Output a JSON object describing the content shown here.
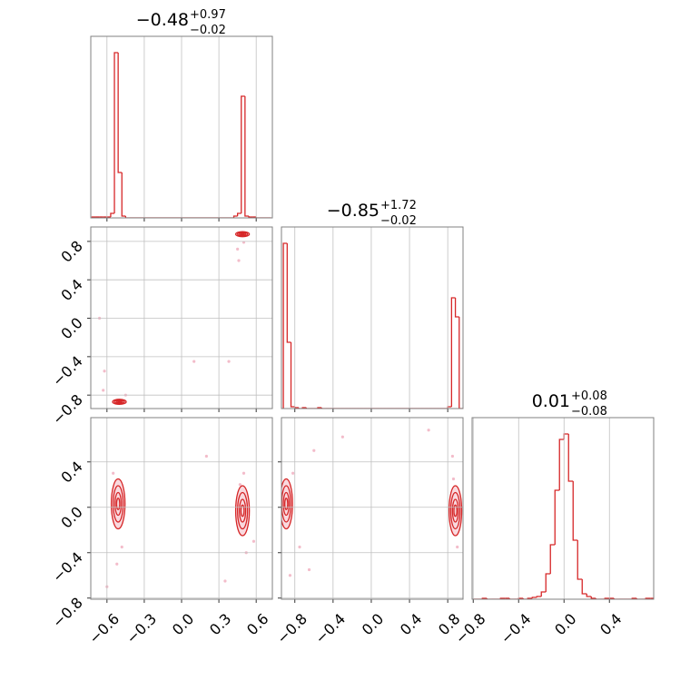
{
  "chart_data": [
    {
      "type": "histogram",
      "title": "−0.48",
      "title_upper": "+0.97",
      "title_lower": "−0.02",
      "color": "#d62728",
      "grid": true,
      "bins": [
        -0.72,
        -0.69,
        -0.66,
        -0.63,
        -0.6,
        -0.57,
        -0.54,
        -0.51,
        -0.48,
        -0.45,
        -0.42,
        -0.39,
        -0.36,
        -0.33,
        -0.3,
        -0.27,
        -0.24,
        -0.21,
        -0.18,
        -0.15,
        -0.12,
        -0.09,
        -0.06,
        -0.03,
        0,
        0.03,
        0.06,
        0.09,
        0.12,
        0.15,
        0.18,
        0.21,
        0.24,
        0.27,
        0.3,
        0.33,
        0.36,
        0.39,
        0.42,
        0.45,
        0.48,
        0.51,
        0.54,
        0.57,
        0.6,
        0.63,
        0.66,
        0.69,
        0.72
      ],
      "counts": [
        1,
        1,
        1,
        1,
        1,
        5,
        182,
        50,
        2,
        0,
        0,
        0,
        0,
        0,
        0,
        0,
        0,
        0,
        0,
        0,
        0,
        0,
        0,
        0,
        0,
        0,
        0,
        0,
        0,
        0,
        0,
        0,
        0,
        0,
        0,
        0,
        0,
        0,
        2,
        5,
        134,
        2,
        1,
        1,
        0,
        0,
        0,
        0
      ],
      "xlim": [
        -0.73,
        0.73
      ],
      "xticks": [
        -0.6,
        -0.3,
        0,
        0.3,
        0.6
      ],
      "ylim": [
        0,
        200
      ]
    },
    {
      "type": "scatter",
      "color": "#d62728",
      "point_color": "#eea0b4",
      "grid": true,
      "x": [
        0.45,
        -0.62,
        -0.63,
        0.38,
        0.1,
        -0.66,
        0.5,
        -0.45,
        0.46
      ],
      "y": [
        0.72,
        -0.55,
        -0.75,
        -0.45,
        -0.45,
        0.0,
        0.79,
        -0.8,
        0.6
      ],
      "clusters": [
        {
          "x": 0.49,
          "y": 0.875,
          "sx": 0.025,
          "sy": 0.012
        },
        {
          "x": -0.5,
          "y": -0.87,
          "sx": 0.025,
          "sy": 0.012
        }
      ],
      "xlim": [
        -0.73,
        0.73
      ],
      "xticks": [
        -0.6,
        -0.3,
        0,
        0.3,
        0.6
      ],
      "ylim": [
        -0.94,
        0.95
      ],
      "show_ytick_labels": true,
      "yticks": [
        {
          "value": -0.8,
          "label": "−0.8"
        },
        {
          "value": -0.4,
          "label": "−0.4"
        },
        {
          "value": 0,
          "label": "0.0"
        },
        0.4,
        0.8
      ]
    },
    {
      "type": "histogram",
      "title": "−0.85",
      "title_upper": "+1.72",
      "title_lower": "−0.02",
      "color": "#d62728",
      "grid": true,
      "bins": [
        -0.92,
        -0.88,
        -0.84,
        -0.8,
        -0.76,
        -0.72,
        -0.68,
        -0.64,
        -0.6,
        -0.56,
        -0.52,
        -0.48,
        -0.44,
        -0.4,
        -0.36,
        -0.32,
        -0.28,
        -0.24,
        -0.2,
        -0.16,
        -0.12,
        -0.08,
        -0.04,
        0,
        0.04,
        0.08,
        0.12,
        0.16,
        0.2,
        0.24,
        0.28,
        0.32,
        0.36,
        0.4,
        0.44,
        0.48,
        0.52,
        0.56,
        0.6,
        0.64,
        0.68,
        0.72,
        0.76,
        0.8,
        0.84,
        0.88,
        0.92,
        0.96
      ],
      "counts": [
        182,
        73,
        2,
        1,
        0,
        1,
        0,
        0,
        0,
        1,
        0,
        0,
        0,
        0,
        0,
        0,
        0,
        0,
        0,
        0,
        0,
        0,
        0,
        0,
        0,
        0,
        0,
        0,
        0,
        0,
        0,
        0,
        0,
        0,
        0,
        0,
        0,
        0,
        0,
        0,
        0,
        0,
        0,
        2,
        122,
        101,
        0
      ],
      "xlim": [
        -0.94,
        0.96
      ],
      "xticks": [
        -0.8,
        -0.4,
        0,
        0.4,
        0.8
      ],
      "ylim": [
        0,
        200
      ]
    },
    {
      "type": "scatter",
      "color": "#d62728",
      "point_color": "#eea0b4",
      "grid": true,
      "x": [
        -0.55,
        -0.48,
        0.5,
        0.52,
        0.35,
        0.2,
        -0.6,
        0.58,
        -0.52,
        0.47
      ],
      "y": [
        0.3,
        -0.35,
        0.3,
        -0.4,
        -0.65,
        0.45,
        -0.7,
        -0.3,
        -0.5,
        0.2
      ],
      "clusters": [
        {
          "x": -0.51,
          "y": 0.03,
          "sx": 0.025,
          "sy": 0.1
        },
        {
          "x": 0.49,
          "y": -0.03,
          "sx": 0.025,
          "sy": 0.1
        }
      ],
      "xlim": [
        -0.73,
        0.73
      ],
      "show_xtick_labels": true,
      "xticks": [
        {
          "value": -0.6,
          "label": "−0.6"
        },
        {
          "value": -0.3,
          "label": "−0.3"
        },
        {
          "value": 0,
          "label": "0.0"
        },
        0.3,
        0.6
      ],
      "ylim": [
        -0.81,
        0.79
      ],
      "show_ytick_labels": true,
      "yticks": [
        {
          "value": -0.8,
          "label": "−0.8"
        },
        {
          "value": -0.4,
          "label": "−0.4"
        },
        {
          "value": 0,
          "label": "0.0"
        },
        0.4
      ]
    },
    {
      "type": "scatter",
      "color": "#d62728",
      "point_color": "#eea0b4",
      "grid": true,
      "x": [
        -0.6,
        -0.3,
        0.6,
        0.85,
        -0.75,
        -0.65,
        0.9,
        -0.85,
        -0.82,
        0.86
      ],
      "y": [
        0.5,
        0.62,
        0.68,
        0.45,
        -0.35,
        -0.55,
        -0.35,
        -0.6,
        0.3,
        0.25
      ],
      "clusters": [
        {
          "x": -0.89,
          "y": 0.03,
          "sx": 0.03,
          "sy": 0.1
        },
        {
          "x": 0.88,
          "y": -0.03,
          "sx": 0.03,
          "sy": 0.1
        }
      ],
      "xlim": [
        -0.94,
        0.96
      ],
      "show_xtick_labels": true,
      "xticks": [
        {
          "value": -0.8,
          "label": "−0.8"
        },
        {
          "value": -0.4,
          "label": "−0.4"
        },
        {
          "value": 0,
          "label": "0.0"
        },
        0.4,
        0.8
      ],
      "ylim": [
        -0.81,
        0.79
      ],
      "yticks": [
        -0.8,
        -0.4,
        0,
        0.4
      ]
    },
    {
      "type": "histogram",
      "title": "0.01",
      "title_upper": "+0.08",
      "title_lower": "−0.08",
      "color": "#d62728",
      "grid": true,
      "bins": [
        -0.8,
        -0.76,
        -0.72,
        -0.68,
        -0.64,
        -0.6,
        -0.56,
        -0.52,
        -0.48,
        -0.44,
        -0.4,
        -0.36,
        -0.32,
        -0.28,
        -0.24,
        -0.2,
        -0.16,
        -0.12,
        -0.08,
        -0.04,
        0,
        0.04,
        0.08,
        0.12,
        0.16,
        0.2,
        0.24,
        0.28,
        0.32,
        0.36,
        0.4,
        0.44,
        0.48,
        0.52,
        0.56,
        0.6,
        0.64,
        0.68,
        0.72,
        0.76,
        0.8
      ],
      "counts": [
        0,
        0,
        1,
        0,
        0,
        0,
        1,
        1,
        0,
        0,
        1,
        0,
        1,
        2,
        3,
        8,
        28,
        60,
        120,
        176,
        182,
        130,
        65,
        22,
        6,
        3,
        1,
        0,
        0,
        1,
        1,
        0,
        0,
        0,
        0,
        1,
        0,
        0,
        1,
        1
      ],
      "xlim": [
        -0.81,
        0.79
      ],
      "show_xtick_labels": true,
      "xticks": [
        {
          "value": -0.8,
          "label": "−0.8"
        },
        {
          "value": -0.4,
          "label": "−0.4"
        },
        {
          "value": 0,
          "label": "0.0"
        },
        0.4
      ],
      "ylim": [
        0,
        200
      ]
    }
  ]
}
